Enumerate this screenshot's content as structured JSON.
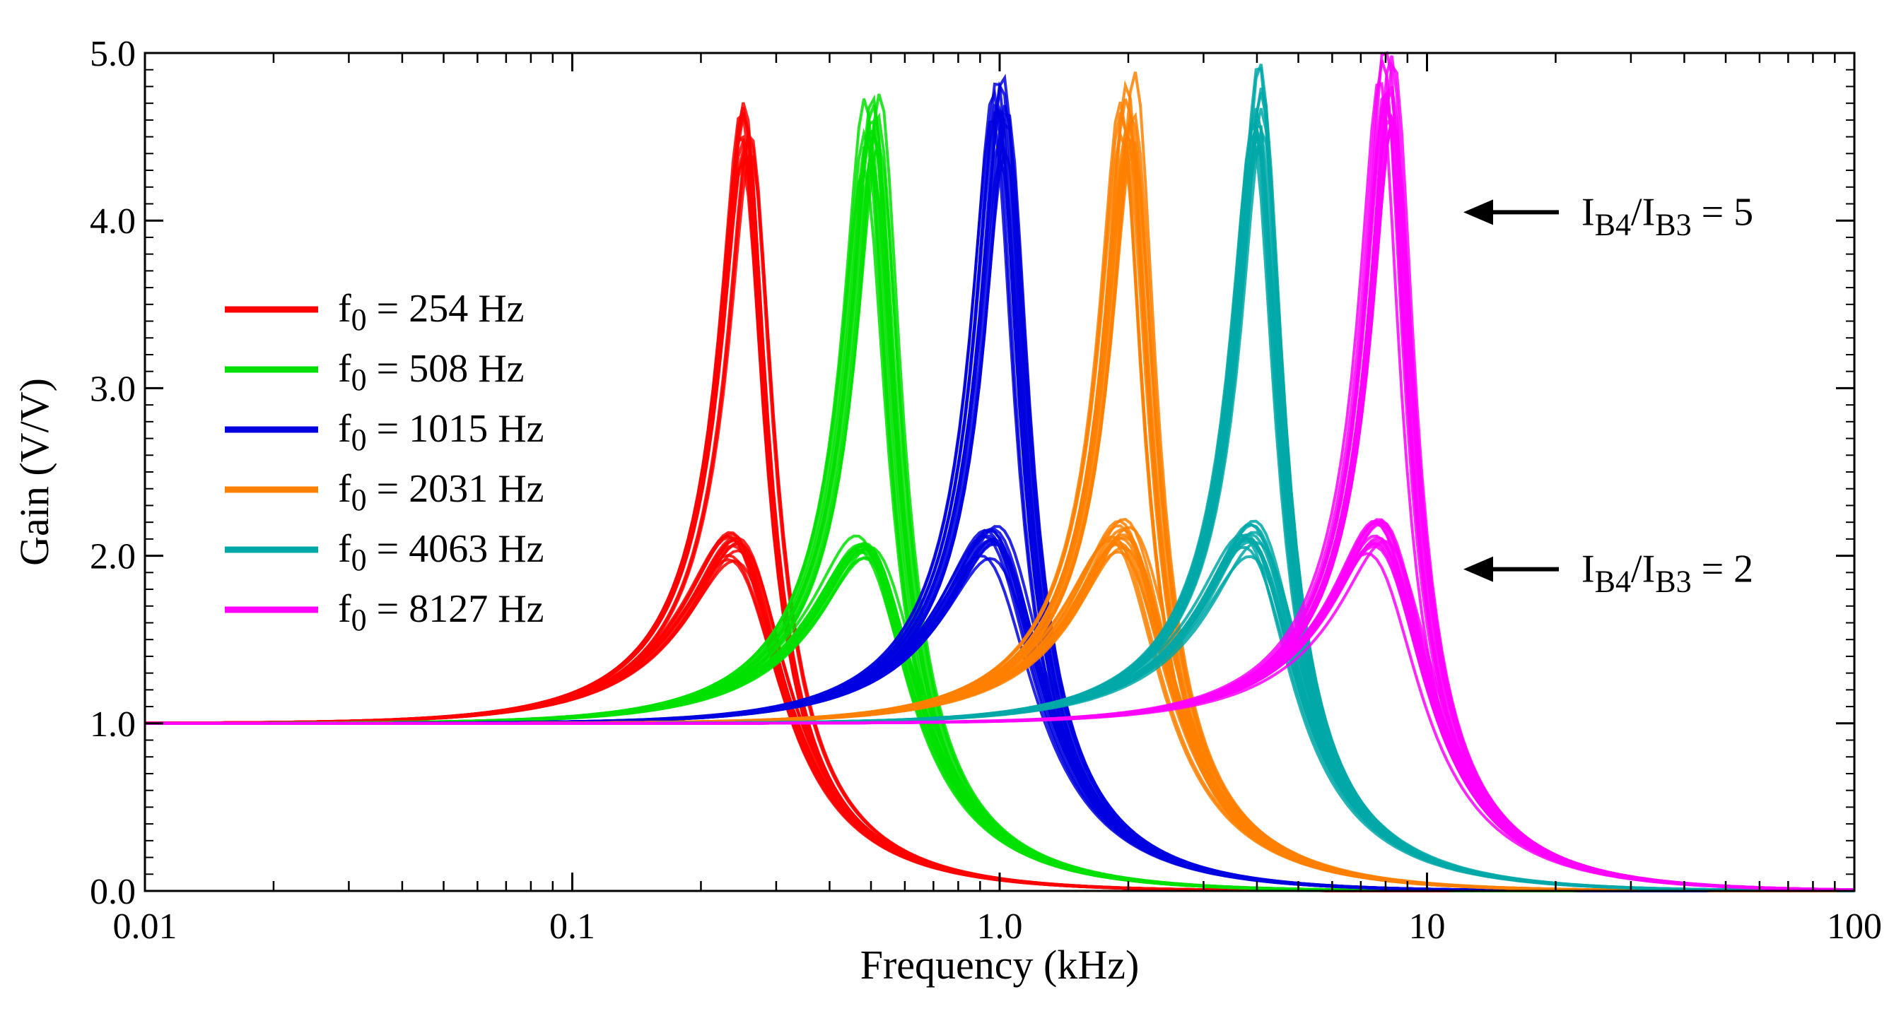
{
  "chart_data": {
    "type": "line",
    "title": "",
    "xlabel": "Frequency (kHz)",
    "ylabel": "Gain (V/V)",
    "xscale": "log",
    "xlim": [
      0.01,
      100
    ],
    "ylim": [
      0.0,
      5.0
    ],
    "x_ticks": [
      {
        "value": 0.01,
        "label": "0.01"
      },
      {
        "value": 0.1,
        "label": "0.1"
      },
      {
        "value": 1.0,
        "label": "1.0"
      },
      {
        "value": 10,
        "label": "10"
      },
      {
        "value": 100,
        "label": "100"
      }
    ],
    "y_ticks": [
      {
        "value": 0.0,
        "label": "0.0"
      },
      {
        "value": 1.0,
        "label": "1.0"
      },
      {
        "value": 2.0,
        "label": "2.0"
      },
      {
        "value": 3.0,
        "label": "3.0"
      },
      {
        "value": 4.0,
        "label": "4.0"
      },
      {
        "value": 5.0,
        "label": "5.0"
      }
    ],
    "legend_position": "left",
    "series": [
      {
        "name": "f0 = 254 Hz",
        "label_sub": "0",
        "label_rest": " = 254 Hz",
        "color": "#ff0000",
        "f0_khz": 0.254,
        "peak_gain_ratio5": 4.5,
        "peak_gain_ratio2": 2.0
      },
      {
        "name": "f0 = 508 Hz",
        "label_sub": "0",
        "label_rest": " = 508 Hz",
        "color": "#00e000",
        "f0_khz": 0.508,
        "peak_gain_ratio5": 4.55,
        "peak_gain_ratio2": 2.0
      },
      {
        "name": "f0 = 1015 Hz",
        "label_sub": "0",
        "label_rest": " = 1015 Hz",
        "color": "#0000e0",
        "f0_khz": 1.015,
        "peak_gain_ratio5": 4.6,
        "peak_gain_ratio2": 2.0
      },
      {
        "name": "f0 = 2031 Hz",
        "label_sub": "0",
        "label_rest": " = 2031 Hz",
        "color": "#ff8000",
        "f0_khz": 2.031,
        "peak_gain_ratio5": 4.65,
        "peak_gain_ratio2": 2.05
      },
      {
        "name": "f0 = 4063 Hz",
        "label_sub": "0",
        "label_rest": " = 4063 Hz",
        "color": "#00a8a8",
        "f0_khz": 4.063,
        "peak_gain_ratio5": 4.7,
        "peak_gain_ratio2": 2.05
      },
      {
        "name": "f0 = 8127 Hz",
        "label_sub": "0",
        "label_rest": " = 8127 Hz",
        "color": "#ff00ff",
        "f0_khz": 8.127,
        "peak_gain_ratio5": 4.75,
        "peak_gain_ratio2": 2.05
      }
    ],
    "annotations": [
      {
        "text_main": "I",
        "sub1": "B4",
        "mid": "/I",
        "sub2": "B3",
        "rest": " = 5",
        "y_value": 4.05
      },
      {
        "text_main": "I",
        "sub1": "B4",
        "mid": "/I",
        "sub2": "B3",
        "rest": " = 2",
        "y_value": 1.92
      }
    ]
  }
}
